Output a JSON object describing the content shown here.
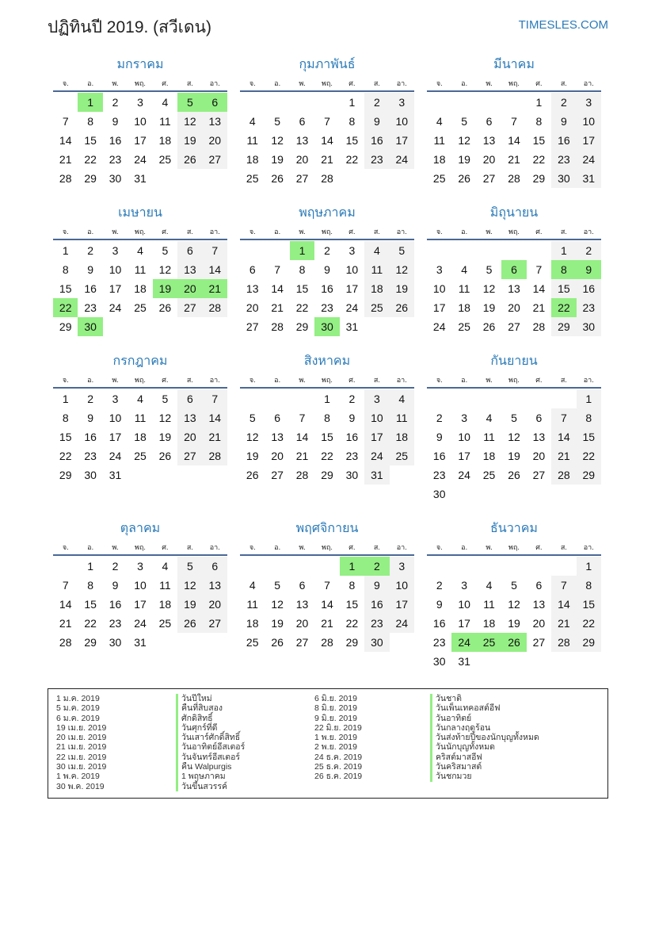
{
  "header": {
    "title": "ปฏิทินปี 2019. (สวีเดน)",
    "brand": "TIMESLES.COM"
  },
  "year": 2019,
  "weekdays": [
    "จ.",
    "อ.",
    "พ.",
    "พฤ.",
    "ศ.",
    "ส.",
    "อา."
  ],
  "colors": {
    "accent": "#2a7ab8",
    "holiday": "#94ef84",
    "weekend": "#f2f2f2"
  },
  "months": [
    {
      "name": "มกราคม",
      "holidays": [
        1,
        5,
        6
      ]
    },
    {
      "name": "กุมภาพันธ์",
      "holidays": []
    },
    {
      "name": "มีนาคม",
      "holidays": []
    },
    {
      "name": "เมษายน",
      "holidays": [
        19,
        20,
        21,
        22,
        30
      ]
    },
    {
      "name": "พฤษภาคม",
      "holidays": [
        1,
        30
      ]
    },
    {
      "name": "มิถุนายน",
      "holidays": [
        6,
        8,
        9,
        22
      ]
    },
    {
      "name": "กรกฎาคม",
      "holidays": []
    },
    {
      "name": "สิงหาคม",
      "holidays": []
    },
    {
      "name": "กันยายน",
      "holidays": []
    },
    {
      "name": "ตุลาคม",
      "holidays": []
    },
    {
      "name": "พฤศจิกายน",
      "holidays": [
        1,
        2
      ]
    },
    {
      "name": "ธันวาคม",
      "holidays": [
        24,
        25,
        26
      ]
    }
  ],
  "holiday_list": [
    {
      "date": "1 ม.ค. 2019",
      "name": "วันปีใหม่"
    },
    {
      "date": "5 ม.ค. 2019",
      "name": "คืนที่สิบสอง"
    },
    {
      "date": "6 ม.ค. 2019",
      "name": "ศักดิสิทธิ์"
    },
    {
      "date": "19 เม.ย. 2019",
      "name": "วันศุกร์ที่ดี"
    },
    {
      "date": "20 เม.ย. 2019",
      "name": "วันเสาร์ศักดิ์สิทธิ์"
    },
    {
      "date": "21 เม.ย. 2019",
      "name": "วันอาทิตย์อีสเตอร์"
    },
    {
      "date": "22 เม.ย. 2019",
      "name": "วันจันทร์อีสเตอร์"
    },
    {
      "date": "30 เม.ย. 2019",
      "name": "คืน Walpurgis"
    },
    {
      "date": "1 พ.ค. 2019",
      "name": "1 พฤษภาคม"
    },
    {
      "date": "30 พ.ค. 2019",
      "name": "วันขึ้นสวรรค์"
    },
    {
      "date": "6 มิ.ย. 2019",
      "name": "วันชาติ"
    },
    {
      "date": "8 มิ.ย. 2019",
      "name": "วันเพ็นเทคอสต์อีฟ"
    },
    {
      "date": "9 มิ.ย. 2019",
      "name": "วันอาทิตย์"
    },
    {
      "date": "22 มิ.ย. 2019",
      "name": "วันกลางฤดูร้อน"
    },
    {
      "date": "1 พ.ย. 2019",
      "name": "วันส่งท้ายปีของนักบุญทั้งหมด"
    },
    {
      "date": "2 พ.ย. 2019",
      "name": "วันนักบุญทั้งหมด"
    },
    {
      "date": "24 ธ.ค. 2019",
      "name": "คริสต์มาสอีฟ"
    },
    {
      "date": "25 ธ.ค. 2019",
      "name": "วันคริสมาสต์"
    },
    {
      "date": "26 ธ.ค. 2019",
      "name": "วันชกมวย"
    }
  ]
}
